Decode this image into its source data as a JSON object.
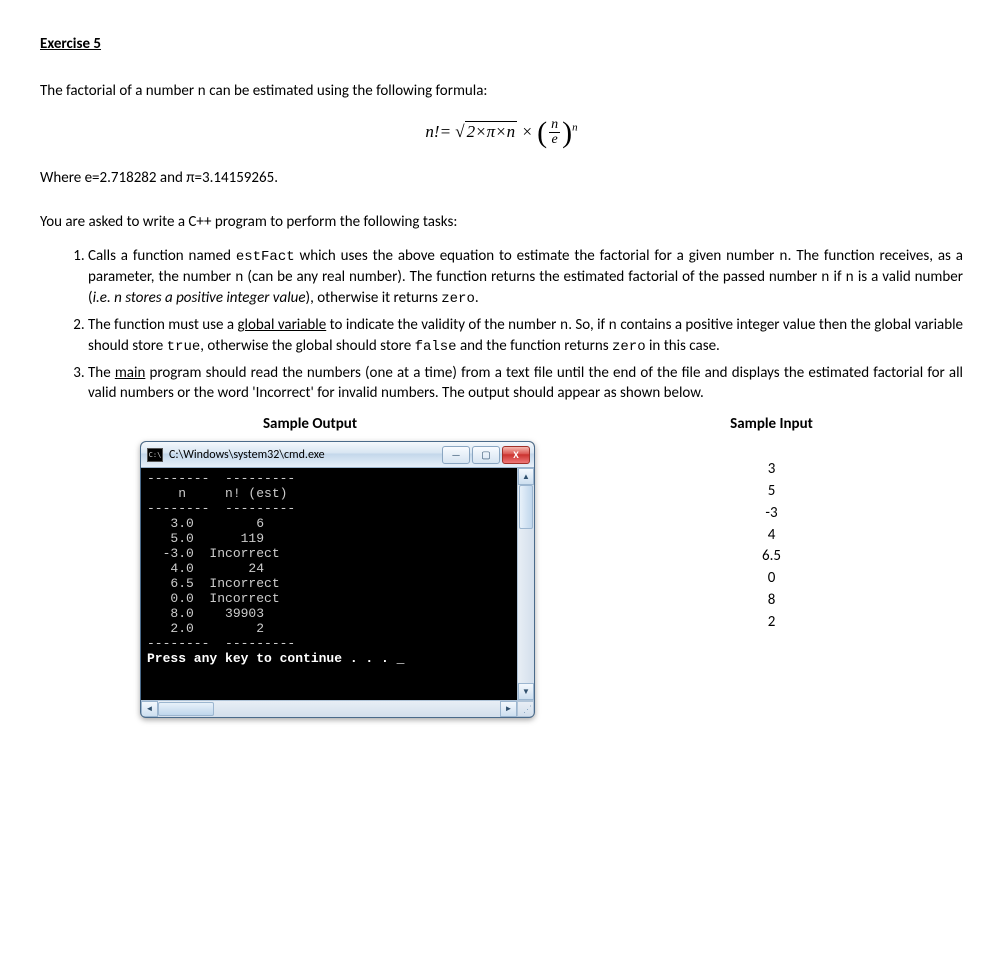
{
  "heading": "Exercise 5",
  "intro": "The factorial of a number ",
  "intro_var": "n",
  "intro_tail": " can be estimated using the following formula:",
  "formula": {
    "lhs_var": "n",
    "bang_eq": "!=",
    "inside_sqrt": "2×π×n",
    "times": " × ",
    "frac_num": "n",
    "frac_den": "e",
    "exponent": "n"
  },
  "constants": "Where e=2.718282 and π=3.14159265.",
  "tasks_intro": "You are asked to write a C++ program to perform the following tasks:",
  "item1": {
    "a": "Calls a function named ",
    "fn": "estFact",
    "b": " which uses the above equation to estimate the factorial for a given number ",
    "n1": "n",
    "c": ". The function receives, as a parameter, the number ",
    "n2": "n",
    "d": " (can be any real number). The function returns the estimated factorial of the passed number ",
    "n3": "n",
    "e": "  if ",
    "n4": "n",
    "f": "  is a valid number (",
    "ital": "i.e. n stores a positive integer value",
    "g": "), otherwise it returns ",
    "zero": "zero",
    "h": "."
  },
  "item2": {
    "a": "The function must use a ",
    "glb": "global variable",
    "b": " to indicate the validity of the number ",
    "n1": "n",
    "c": ". So, if ",
    "n2": "n",
    "d": " contains a positive integer value then the global variable should store ",
    "true": "true",
    "e": ", otherwise the global should store ",
    "false": "false",
    "f": "  and the function returns  ",
    "zero": "zero",
    "g": "  in this case."
  },
  "item3": {
    "a": "The ",
    "main": "main",
    "b": " program should read the numbers (one at a time) from a text file until the end of the file and displays the estimated factorial for all valid numbers or the word 'Incorrect' for invalid numbers. The output should appear as shown below."
  },
  "labels": {
    "output": "Sample Output",
    "input": "Sample Input"
  },
  "cmd": {
    "title": "C:\\Windows\\system32\\cmd.exe",
    "icon_text": "C:\\",
    "header_n": "n",
    "header_est": "n! (est)",
    "rows": [
      {
        "n": "3.0",
        "v": "6"
      },
      {
        "n": "5.0",
        "v": "119"
      },
      {
        "n": "-3.0",
        "v": "Incorrect"
      },
      {
        "n": "4.0",
        "v": "24"
      },
      {
        "n": "6.5",
        "v": "Incorrect"
      },
      {
        "n": "0.0",
        "v": "Incorrect"
      },
      {
        "n": "8.0",
        "v": "39903"
      },
      {
        "n": "2.0",
        "v": "2"
      }
    ],
    "footer": "Press any key to continue . . . _"
  },
  "sample_input": [
    "3",
    "5",
    "-3",
    "4",
    "6.5",
    "0",
    "8",
    "2"
  ],
  "colors": {
    "text": "#000000",
    "cmd_bg": "#000000",
    "cmd_fg": "#cccccc",
    "titlebar_top": "#f4f8fc",
    "titlebar_bot": "#c2d6ea",
    "close_btn": "#d9534f"
  },
  "typography": {
    "body_family": "Calibri",
    "body_size_pt": 11,
    "code_family": "Courier New",
    "console_family": "Lucida Console",
    "console_size_pt": 10
  }
}
